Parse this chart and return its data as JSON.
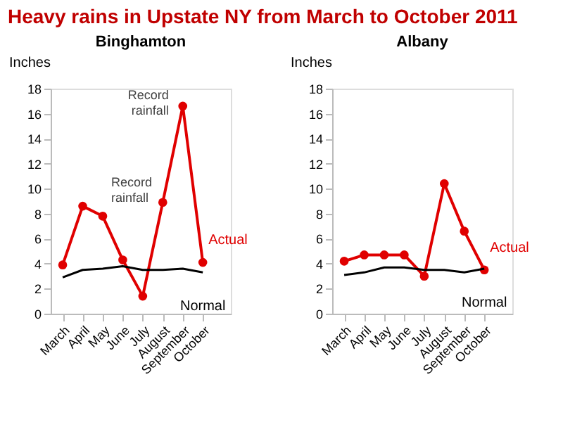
{
  "chart_data": [
    {
      "type": "line",
      "title": "Binghamton",
      "ylabel": "Inches",
      "categories": [
        "March",
        "April",
        "May",
        "June",
        "July",
        "August",
        "September",
        "October"
      ],
      "series": [
        {
          "name": "Actual",
          "color": "#e00000",
          "marker": "circle",
          "values": [
            3.9,
            8.6,
            7.8,
            4.3,
            1.4,
            8.9,
            16.6,
            4.1
          ]
        },
        {
          "name": "Normal",
          "color": "#000000",
          "marker": "none",
          "values": [
            2.9,
            3.5,
            3.6,
            3.8,
            3.5,
            3.5,
            3.6,
            3.3
          ]
        }
      ],
      "ylim": [
        0,
        18
      ],
      "yticks": [
        0,
        2,
        4,
        6,
        8,
        10,
        12,
        14,
        16,
        18
      ],
      "grid": false,
      "annotations": [
        "Heavy rains in Upstate NY from March to October 2011",
        {
          "text": "Record rainfall",
          "x": "May",
          "y": 7.8
        },
        {
          "text": "Record rainfall",
          "x": "September",
          "y": 16.6
        }
      ]
    },
    {
      "type": "line",
      "title": "Albany",
      "ylabel": "Inches",
      "categories": [
        "March",
        "April",
        "May",
        "June",
        "July",
        "August",
        "September",
        "October"
      ],
      "series": [
        {
          "name": "Actual",
          "color": "#e00000",
          "marker": "circle",
          "values": [
            4.2,
            4.7,
            4.7,
            4.7,
            3.0,
            10.4,
            6.6,
            3.5
          ]
        },
        {
          "name": "Normal",
          "color": "#000000",
          "marker": "none",
          "values": [
            3.1,
            3.3,
            3.7,
            3.7,
            3.5,
            3.5,
            3.3,
            3.6
          ]
        }
      ],
      "ylim": [
        0,
        18
      ],
      "yticks": [
        0,
        2,
        4,
        6,
        8,
        10,
        12,
        14,
        16,
        18
      ],
      "grid": false
    }
  ]
}
